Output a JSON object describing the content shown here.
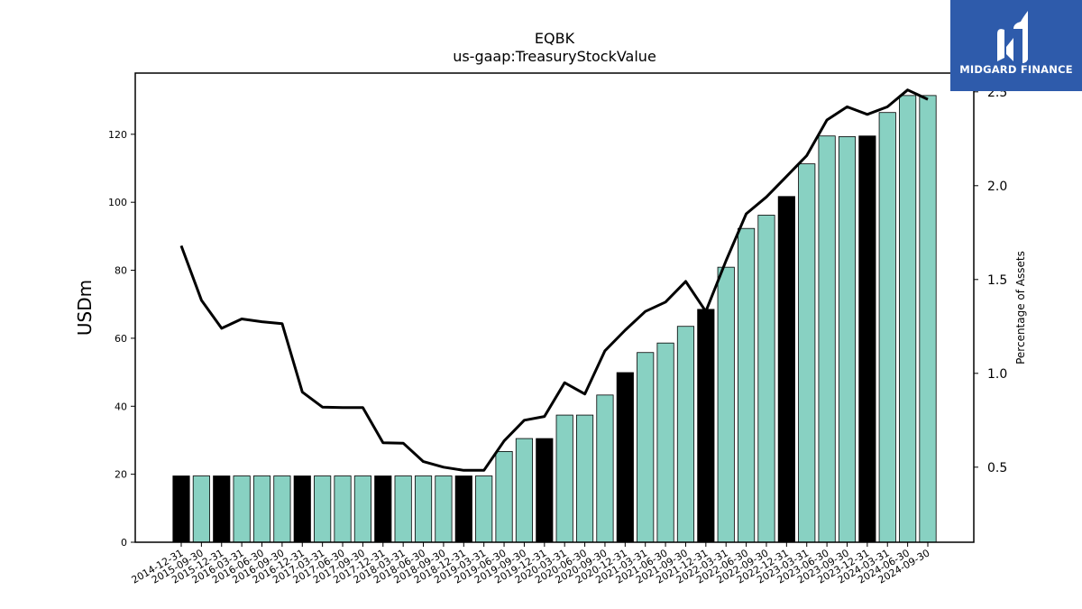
{
  "brand": {
    "name": "MIDGARD FINANCE",
    "logo_icon": "midgard-logo-icon",
    "logo_bg": "#2e5bab"
  },
  "colors": {
    "bar_regular": "#88d1c2",
    "bar_annual": "#000000",
    "line": "#000000"
  },
  "chart_data": {
    "type": "bar",
    "title": "EQBK",
    "subtitle": "us-gaap:TreasuryStockValue",
    "ylabel": "USDm",
    "y2label": "Percentage of Assets",
    "ylim": [
      0,
      138
    ],
    "y2lim": [
      0.1,
      2.6
    ],
    "yticks": [
      0,
      20,
      40,
      60,
      80,
      100,
      120
    ],
    "y2ticks": [
      0.5,
      1.0,
      1.5,
      2.0,
      2.5
    ],
    "y2tick_labels": [
      "0.5",
      "1.0",
      "1.5",
      "2.0",
      "2.5"
    ],
    "grid": false,
    "categories": [
      "2014-12-31",
      "2015-09-30",
      "2015-12-31",
      "2016-03-31",
      "2016-06-30",
      "2016-09-30",
      "2016-12-31",
      "2017-03-31",
      "2017-06-30",
      "2017-09-30",
      "2017-12-31",
      "2018-03-31",
      "2018-06-30",
      "2018-09-30",
      "2018-12-31",
      "2019-03-31",
      "2019-06-30",
      "2019-09-30",
      "2019-12-31",
      "2020-03-31",
      "2020-06-30",
      "2020-09-30",
      "2020-12-31",
      "2021-03-31",
      "2021-06-30",
      "2021-09-30",
      "2021-12-31",
      "2022-03-31",
      "2022-06-30",
      "2022-09-30",
      "2022-12-31",
      "2023-03-31",
      "2023-06-30",
      "2023-09-30",
      "2023-12-31",
      "2024-03-31",
      "2024-06-30",
      "2024-09-30"
    ],
    "series": [
      {
        "kind": "bar",
        "values": [
          19.5,
          19.5,
          19.5,
          19.5,
          19.5,
          19.5,
          19.5,
          19.5,
          19.5,
          19.5,
          19.5,
          19.5,
          19.5,
          19.5,
          19.5,
          19.5,
          26.7,
          30.5,
          30.5,
          37.4,
          37.4,
          43.3,
          49.9,
          55.8,
          58.6,
          63.5,
          68.5,
          80.9,
          92.3,
          96.2,
          101.7,
          111.3,
          119.5,
          119.3,
          119.5,
          126.4,
          131.4,
          131.4
        ],
        "annual_flags": [
          1,
          0,
          1,
          0,
          0,
          0,
          1,
          0,
          0,
          0,
          1,
          0,
          0,
          0,
          1,
          0,
          0,
          0,
          1,
          0,
          0,
          0,
          1,
          0,
          0,
          0,
          1,
          0,
          0,
          0,
          1,
          0,
          0,
          0,
          1,
          0,
          0,
          0
        ]
      },
      {
        "kind": "line",
        "axis": "right",
        "values": [
          1.68,
          1.39,
          1.24,
          1.29,
          1.275,
          1.265,
          0.9,
          0.82,
          0.818,
          0.818,
          0.63,
          0.628,
          0.53,
          0.5,
          0.483,
          0.483,
          0.64,
          0.75,
          0.77,
          0.95,
          0.89,
          1.12,
          1.23,
          1.33,
          1.38,
          1.49,
          1.33,
          1.6,
          1.85,
          1.94,
          2.05,
          2.16,
          2.35,
          2.42,
          2.38,
          2.42,
          2.51,
          2.46
        ]
      }
    ]
  }
}
